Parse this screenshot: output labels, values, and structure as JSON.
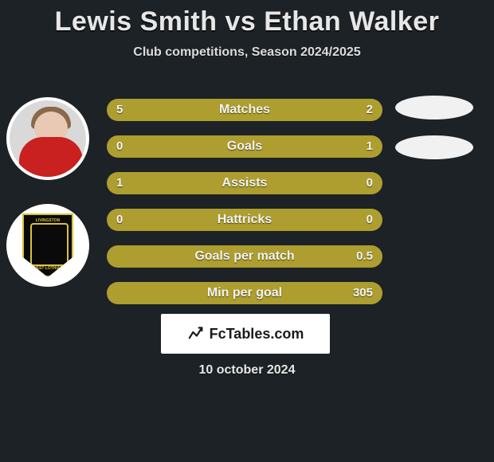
{
  "header": {
    "title": "Lewis Smith vs Ethan Walker",
    "subtitle": "Club competitions, Season 2024/2025"
  },
  "players": {
    "left": {
      "name": "Lewis Smith",
      "club_text_top": "LIVINGSTON",
      "club_text_bottom": "WEST LOTHIAN"
    },
    "right": {
      "name": "Ethan Walker"
    }
  },
  "bars": {
    "track_color": "#3a4146",
    "fill_color": "#b7a62e",
    "label_color": "#f4f4f4",
    "rows": [
      {
        "label": "Matches",
        "left_val": "5",
        "right_val": "2",
        "left_pct": 68,
        "right_pct": 32
      },
      {
        "label": "Goals",
        "left_val": "0",
        "right_val": "1",
        "left_pct": 18,
        "right_pct": 82
      },
      {
        "label": "Assists",
        "left_val": "1",
        "right_val": "0",
        "left_pct": 100,
        "right_pct": 0
      },
      {
        "label": "Hattricks",
        "left_val": "0",
        "right_val": "0",
        "left_pct": 100,
        "right_pct": 0
      },
      {
        "label": "Goals per match",
        "left_val": "",
        "right_val": "0.5",
        "left_pct": 0,
        "right_pct": 100
      },
      {
        "label": "Min per goal",
        "left_val": "",
        "right_val": "305",
        "left_pct": 0,
        "right_pct": 100
      }
    ]
  },
  "brand": {
    "text": "FcTables.com"
  },
  "date": "10 october 2024",
  "colors": {
    "background": "#1c2226",
    "text": "#ffffff",
    "ellipse": "#f1f1f1",
    "brand_box": "#ffffff",
    "brand_text": "#1a1a1a",
    "crest_bg": "#0a0a0a",
    "crest_accent": "#d9c23a"
  }
}
